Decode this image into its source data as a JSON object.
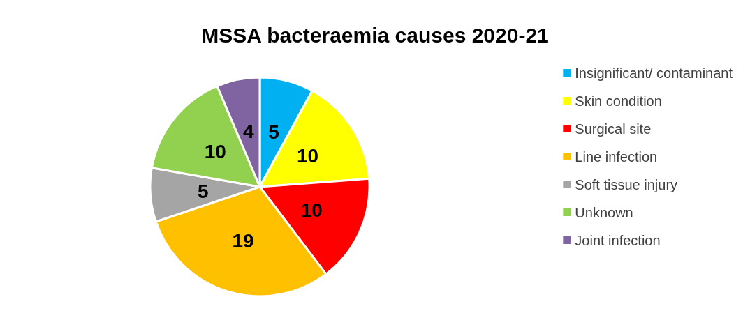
{
  "chart_data": {
    "type": "pie",
    "title": "MSSA bacteraemia causes 2020-21",
    "categories": [
      "Insignificant/ contaminant",
      "Skin condition",
      "Surgical site",
      "Line infection",
      "Soft tissue injury",
      "Unknown",
      "Joint infection"
    ],
    "values": [
      5,
      10,
      10,
      19,
      5,
      10,
      4
    ],
    "colors": [
      "#00b0f0",
      "#ffff00",
      "#ff0000",
      "#ffc000",
      "#a5a5a5",
      "#92d050",
      "#8064a2"
    ],
    "data_labels": true,
    "legend": "right"
  }
}
